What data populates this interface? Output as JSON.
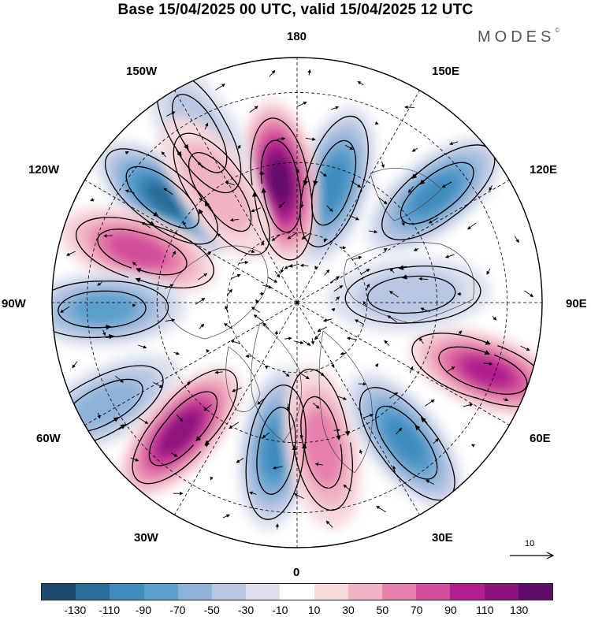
{
  "title": "Base 15/04/2025 00 UTC, valid 15/04/2025 12 UTC",
  "brand": "MODES",
  "brand_mark": "©",
  "longitude_labels": {
    "top": "180",
    "bottom": "0",
    "left": "90W",
    "right": "90E",
    "upper_left_1": "150W",
    "upper_left_2": "120W",
    "lower_left_1": "60W",
    "lower_left_2": "30W",
    "upper_right_1": "150E",
    "upper_right_2": "120E",
    "lower_right_1": "60E",
    "lower_right_2": "30E"
  },
  "reference_vector": {
    "label": "10"
  },
  "colorbar": {
    "colors": [
      "#1a4a6e",
      "#2a6d9a",
      "#3f8cc0",
      "#5a9fcb",
      "#8eb2d9",
      "#b8c6e2",
      "#dde1ef",
      "#ffffff",
      "#f7d9dc",
      "#f0b3c3",
      "#e680ac",
      "#d24d9a",
      "#b01f8e",
      "#8c127c",
      "#5e0d69"
    ],
    "tick_labels": [
      "-130",
      "-110",
      "-90",
      "-70",
      "-50",
      "-30",
      "-10",
      "10",
      "30",
      "50",
      "70",
      "90",
      "110",
      "130"
    ]
  },
  "field_cells": [
    {
      "sign": "neg",
      "level": 5,
      "lon": 163,
      "lat": 55
    },
    {
      "sign": "pos",
      "level": 7,
      "lon": -172,
      "lat": 55
    },
    {
      "sign": "neg",
      "level": 6,
      "lon": -128,
      "lat": 42
    },
    {
      "sign": "pos",
      "level": 4,
      "lon": -108,
      "lat": 42
    },
    {
      "sign": "neg",
      "level": 4,
      "lon": -88,
      "lat": 35
    },
    {
      "sign": "neg",
      "level": 3,
      "lon": -62,
      "lat": 28
    },
    {
      "sign": "pos",
      "level": 6,
      "lon": -42,
      "lat": 40
    },
    {
      "sign": "neg",
      "level": 5,
      "lon": -8,
      "lat": 48
    },
    {
      "sign": "pos",
      "level": 3,
      "lon": 10,
      "lat": 48
    },
    {
      "sign": "neg",
      "level": 5,
      "lon": 38,
      "lat": 40
    },
    {
      "sign": "pos",
      "level": 5,
      "lon": 70,
      "lat": 32
    },
    {
      "sign": "neg",
      "level": 2,
      "lon": 94,
      "lat": 58
    },
    {
      "sign": "neg",
      "level": 5,
      "lon": 128,
      "lat": 40
    },
    {
      "sign": "neg",
      "level": 2,
      "lon": -150,
      "lat": 35
    },
    {
      "sign": "pos",
      "level": 2,
      "lon": -145,
      "lat": 50
    }
  ]
}
